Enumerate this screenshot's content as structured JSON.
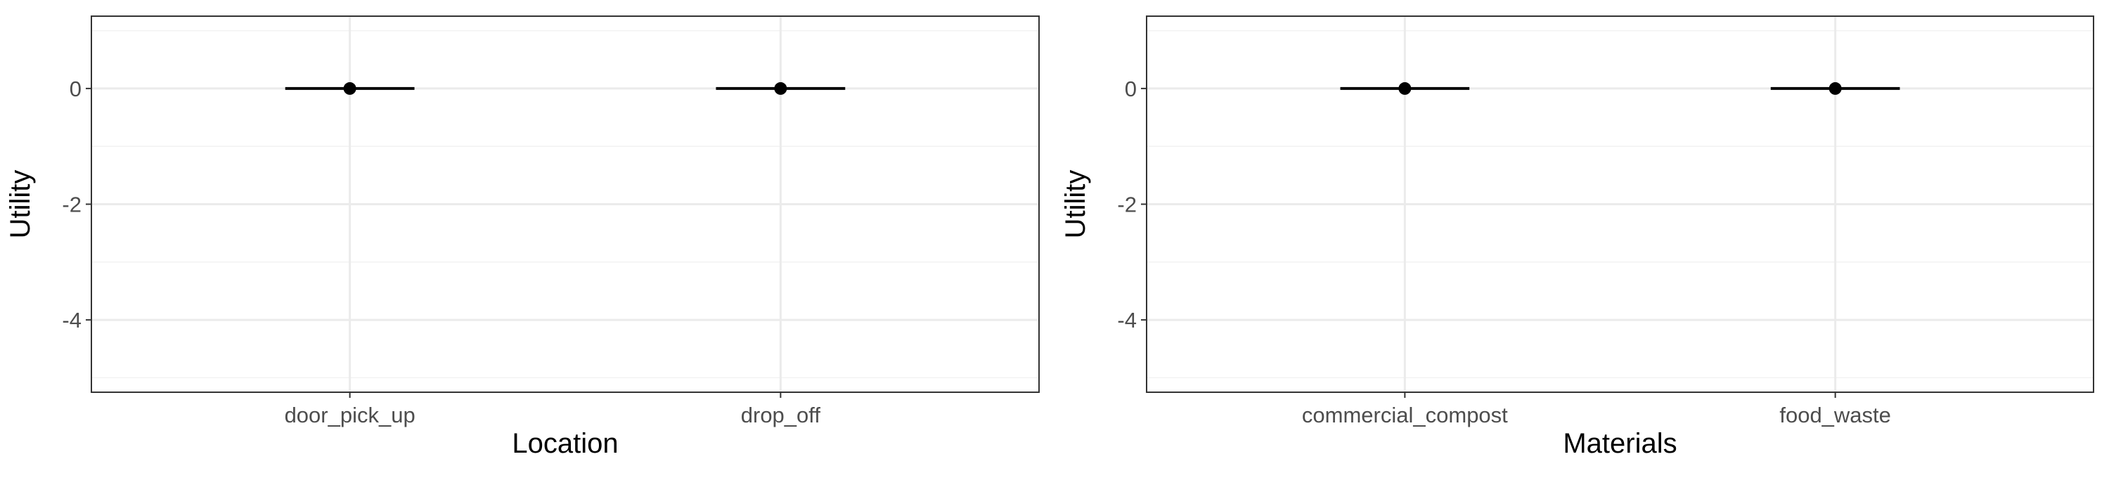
{
  "chart_data": [
    {
      "type": "scatter",
      "xlabel": "Location",
      "ylabel": "Utility",
      "categories": [
        "door_pick_up",
        "drop_off"
      ],
      "values": [
        0,
        0
      ],
      "lower": [
        0,
        0
      ],
      "upper": [
        0,
        0
      ],
      "ylim": [
        -5.25,
        1.25
      ],
      "yticks": [
        0,
        -2,
        -4
      ],
      "grid": true,
      "error_bars": "horizontal segments"
    },
    {
      "type": "scatter",
      "xlabel": "Materials",
      "ylabel": "Utility",
      "categories": [
        "commercial_compost",
        "food_waste"
      ],
      "values": [
        0,
        0
      ],
      "lower": [
        0,
        0
      ],
      "upper": [
        0,
        0
      ],
      "ylim": [
        -5.25,
        1.25
      ],
      "yticks": [
        0,
        -2,
        -4
      ],
      "grid": true,
      "error_bars": "horizontal segments"
    }
  ]
}
